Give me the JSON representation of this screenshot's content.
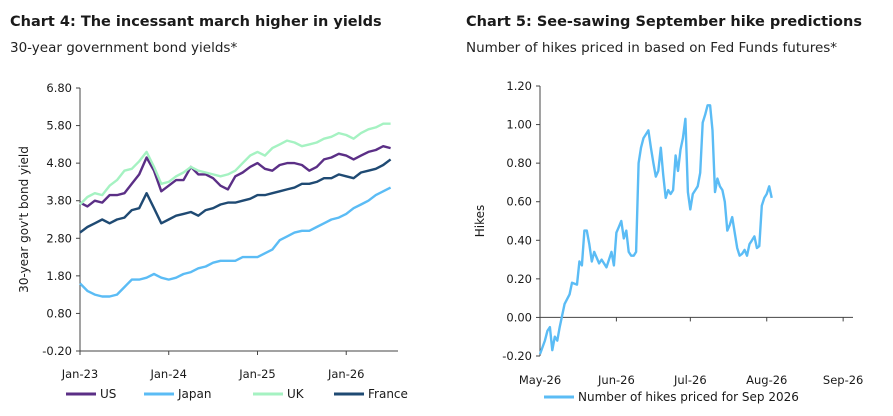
{
  "chart_data": [
    {
      "type": "line",
      "title": "Chart 4: The incessant march higher in yields",
      "subtitle": "30-year government bond yields*",
      "ylabel": "30-year gov't bond yield",
      "ylim": [
        -0.2,
        6.8
      ],
      "yticks": [
        "6.80",
        "5.80",
        "4.80",
        "3.80",
        "2.80",
        "1.80",
        "0.80",
        "-0.20"
      ],
      "xticks": [
        {
          "label": "Jan-23",
          "month": 0
        },
        {
          "label": "Jan-24",
          "month": 12
        },
        {
          "label": "Jan-25",
          "month": 24
        },
        {
          "label": "Jan-26",
          "month": 36
        }
      ],
      "xlim_months": [
        0,
        43
      ],
      "legend": "bottom",
      "series": [
        {
          "name": "US",
          "color": "#5b2f86",
          "points": [
            [
              0,
              3.75
            ],
            [
              1,
              3.65
            ],
            [
              2,
              3.8
            ],
            [
              3,
              3.75
            ],
            [
              4,
              3.95
            ],
            [
              5,
              3.95
            ],
            [
              6,
              4.0
            ],
            [
              7,
              4.25
            ],
            [
              8,
              4.5
            ],
            [
              9,
              4.95
            ],
            [
              10,
              4.6
            ],
            [
              11,
              4.05
            ],
            [
              12,
              4.2
            ],
            [
              13,
              4.35
            ],
            [
              14,
              4.35
            ],
            [
              15,
              4.7
            ],
            [
              16,
              4.5
            ],
            [
              17,
              4.5
            ],
            [
              18,
              4.4
            ],
            [
              19,
              4.2
            ],
            [
              20,
              4.1
            ],
            [
              21,
              4.45
            ],
            [
              22,
              4.55
            ],
            [
              23,
              4.7
            ],
            [
              24,
              4.8
            ],
            [
              25,
              4.65
            ],
            [
              26,
              4.6
            ],
            [
              27,
              4.75
            ],
            [
              28,
              4.8
            ],
            [
              29,
              4.8
            ],
            [
              30,
              4.75
            ],
            [
              31,
              4.6
            ],
            [
              32,
              4.7
            ],
            [
              33,
              4.9
            ],
            [
              34,
              4.95
            ],
            [
              35,
              5.05
            ],
            [
              36,
              5.0
            ],
            [
              37,
              4.9
            ],
            [
              38,
              5.0
            ],
            [
              39,
              5.1
            ],
            [
              40,
              5.15
            ],
            [
              41,
              5.25
            ],
            [
              42,
              5.2
            ]
          ]
        },
        {
          "name": "Japan",
          "color": "#5bbcf5",
          "points": [
            [
              0,
              1.6
            ],
            [
              1,
              1.4
            ],
            [
              2,
              1.3
            ],
            [
              3,
              1.25
            ],
            [
              4,
              1.25
            ],
            [
              5,
              1.3
            ],
            [
              6,
              1.5
            ],
            [
              7,
              1.7
            ],
            [
              8,
              1.7
            ],
            [
              9,
              1.75
            ],
            [
              10,
              1.85
            ],
            [
              11,
              1.75
            ],
            [
              12,
              1.7
            ],
            [
              13,
              1.75
            ],
            [
              14,
              1.85
            ],
            [
              15,
              1.9
            ],
            [
              16,
              2.0
            ],
            [
              17,
              2.05
            ],
            [
              18,
              2.15
            ],
            [
              19,
              2.2
            ],
            [
              20,
              2.2
            ],
            [
              21,
              2.2
            ],
            [
              22,
              2.3
            ],
            [
              23,
              2.3
            ],
            [
              24,
              2.3
            ],
            [
              25,
              2.4
            ],
            [
              26,
              2.5
            ],
            [
              27,
              2.75
            ],
            [
              28,
              2.85
            ],
            [
              29,
              2.95
            ],
            [
              30,
              3.0
            ],
            [
              31,
              3.0
            ],
            [
              32,
              3.1
            ],
            [
              33,
              3.2
            ],
            [
              34,
              3.3
            ],
            [
              35,
              3.35
            ],
            [
              36,
              3.45
            ],
            [
              37,
              3.6
            ],
            [
              38,
              3.7
            ],
            [
              39,
              3.8
            ],
            [
              40,
              3.95
            ],
            [
              41,
              4.05
            ],
            [
              42,
              4.15
            ]
          ]
        },
        {
          "name": "UK",
          "color": "#a5f2c2",
          "points": [
            [
              0,
              3.7
            ],
            [
              1,
              3.9
            ],
            [
              2,
              4.0
            ],
            [
              3,
              3.95
            ],
            [
              4,
              4.2
            ],
            [
              5,
              4.35
            ],
            [
              6,
              4.6
            ],
            [
              7,
              4.65
            ],
            [
              8,
              4.85
            ],
            [
              9,
              5.1
            ],
            [
              10,
              4.7
            ],
            [
              11,
              4.25
            ],
            [
              12,
              4.3
            ],
            [
              13,
              4.45
            ],
            [
              14,
              4.55
            ],
            [
              15,
              4.7
            ],
            [
              16,
              4.6
            ],
            [
              17,
              4.55
            ],
            [
              18,
              4.5
            ],
            [
              19,
              4.45
            ],
            [
              20,
              4.5
            ],
            [
              21,
              4.6
            ],
            [
              22,
              4.8
            ],
            [
              23,
              5.0
            ],
            [
              24,
              5.1
            ],
            [
              25,
              5.0
            ],
            [
              26,
              5.2
            ],
            [
              27,
              5.3
            ],
            [
              28,
              5.4
            ],
            [
              29,
              5.35
            ],
            [
              30,
              5.25
            ],
            [
              31,
              5.3
            ],
            [
              32,
              5.35
            ],
            [
              33,
              5.45
            ],
            [
              34,
              5.5
            ],
            [
              35,
              5.6
            ],
            [
              36,
              5.55
            ],
            [
              37,
              5.45
            ],
            [
              38,
              5.6
            ],
            [
              39,
              5.7
            ],
            [
              40,
              5.75
            ],
            [
              41,
              5.85
            ],
            [
              42,
              5.85
            ]
          ]
        },
        {
          "name": "France",
          "color": "#1f4a73",
          "points": [
            [
              0,
              2.95
            ],
            [
              1,
              3.1
            ],
            [
              2,
              3.2
            ],
            [
              3,
              3.3
            ],
            [
              4,
              3.2
            ],
            [
              5,
              3.3
            ],
            [
              6,
              3.35
            ],
            [
              7,
              3.55
            ],
            [
              8,
              3.6
            ],
            [
              9,
              4.0
            ],
            [
              10,
              3.6
            ],
            [
              11,
              3.2
            ],
            [
              12,
              3.3
            ],
            [
              13,
              3.4
            ],
            [
              14,
              3.45
            ],
            [
              15,
              3.5
            ],
            [
              16,
              3.4
            ],
            [
              17,
              3.55
            ],
            [
              18,
              3.6
            ],
            [
              19,
              3.7
            ],
            [
              20,
              3.75
            ],
            [
              21,
              3.75
            ],
            [
              22,
              3.8
            ],
            [
              23,
              3.85
            ],
            [
              24,
              3.95
            ],
            [
              25,
              3.95
            ],
            [
              26,
              4.0
            ],
            [
              27,
              4.05
            ],
            [
              28,
              4.1
            ],
            [
              29,
              4.15
            ],
            [
              30,
              4.25
            ],
            [
              31,
              4.25
            ],
            [
              32,
              4.3
            ],
            [
              33,
              4.4
            ],
            [
              34,
              4.4
            ],
            [
              35,
              4.5
            ],
            [
              36,
              4.45
            ],
            [
              37,
              4.4
            ],
            [
              38,
              4.55
            ],
            [
              39,
              4.6
            ],
            [
              40,
              4.65
            ],
            [
              41,
              4.75
            ],
            [
              42,
              4.9
            ]
          ]
        }
      ]
    },
    {
      "type": "line",
      "title": "Chart 5: See-sawing September hike predictions",
      "subtitle": "Number of hikes priced in based on Fed Funds futures*",
      "ylabel": "Hikes",
      "ylim": [
        -0.2,
        1.2
      ],
      "yticks": [
        "1.20",
        "1.00",
        "0.80",
        "0.60",
        "0.40",
        "0.20",
        "0.00",
        "-0.20"
      ],
      "xticks": [
        {
          "label": "May-26",
          "day": 0
        },
        {
          "label": "Jun-26",
          "day": 31
        },
        {
          "label": "Jul-26",
          "day": 61
        },
        {
          "label": "Aug-26",
          "day": 92
        },
        {
          "label": "Sep-26",
          "day": 123
        }
      ],
      "xlim_days": [
        0,
        127
      ],
      "legend": "bottom",
      "series": [
        {
          "name": "Number of hikes priced for Sep 2026",
          "color": "#5bbcf5",
          "points": [
            [
              0,
              -0.19
            ],
            [
              2,
              -0.12
            ],
            [
              3,
              -0.07
            ],
            [
              4,
              -0.05
            ],
            [
              5,
              -0.17
            ],
            [
              6,
              -0.1
            ],
            [
              7,
              -0.12
            ],
            [
              8,
              -0.05
            ],
            [
              10,
              0.07
            ],
            [
              12,
              0.12
            ],
            [
              13,
              0.18
            ],
            [
              15,
              0.17
            ],
            [
              16,
              0.29
            ],
            [
              17,
              0.27
            ],
            [
              18,
              0.45
            ],
            [
              19,
              0.45
            ],
            [
              20,
              0.38
            ],
            [
              21,
              0.29
            ],
            [
              22,
              0.34
            ],
            [
              24,
              0.28
            ],
            [
              25,
              0.3
            ],
            [
              27,
              0.26
            ],
            [
              29,
              0.34
            ],
            [
              30,
              0.27
            ],
            [
              31,
              0.44
            ],
            [
              32,
              0.47
            ],
            [
              33,
              0.5
            ],
            [
              34,
              0.41
            ],
            [
              35,
              0.45
            ],
            [
              36,
              0.34
            ],
            [
              37,
              0.32
            ],
            [
              38,
              0.32
            ],
            [
              39,
              0.34
            ],
            [
              40,
              0.8
            ],
            [
              41,
              0.88
            ],
            [
              42,
              0.93
            ],
            [
              44,
              0.97
            ],
            [
              45,
              0.88
            ],
            [
              46,
              0.8
            ],
            [
              47,
              0.73
            ],
            [
              48,
              0.76
            ],
            [
              49,
              0.88
            ],
            [
              50,
              0.74
            ],
            [
              51,
              0.62
            ],
            [
              52,
              0.66
            ],
            [
              53,
              0.64
            ],
            [
              54,
              0.66
            ],
            [
              55,
              0.84
            ],
            [
              56,
              0.76
            ],
            [
              57,
              0.87
            ],
            [
              58,
              0.93
            ],
            [
              59,
              1.03
            ],
            [
              60,
              0.65
            ],
            [
              61,
              0.56
            ],
            [
              62,
              0.64
            ],
            [
              63,
              0.66
            ],
            [
              64,
              0.68
            ],
            [
              65,
              0.75
            ],
            [
              66,
              1.01
            ],
            [
              67,
              1.05
            ],
            [
              68,
              1.1
            ],
            [
              69,
              1.1
            ],
            [
              70,
              0.97
            ],
            [
              71,
              0.65
            ],
            [
              72,
              0.72
            ],
            [
              73,
              0.68
            ],
            [
              74,
              0.66
            ],
            [
              75,
              0.6
            ],
            [
              76,
              0.45
            ],
            [
              77,
              0.48
            ],
            [
              78,
              0.52
            ],
            [
              79,
              0.44
            ],
            [
              80,
              0.36
            ],
            [
              81,
              0.32
            ],
            [
              82,
              0.33
            ],
            [
              83,
              0.35
            ],
            [
              84,
              0.32
            ],
            [
              85,
              0.38
            ],
            [
              86,
              0.4
            ],
            [
              87,
              0.42
            ],
            [
              88,
              0.36
            ],
            [
              89,
              0.37
            ],
            [
              90,
              0.58
            ],
            [
              91,
              0.62
            ],
            [
              92,
              0.64
            ],
            [
              93,
              0.68
            ],
            [
              94,
              0.62
            ]
          ]
        }
      ]
    }
  ]
}
